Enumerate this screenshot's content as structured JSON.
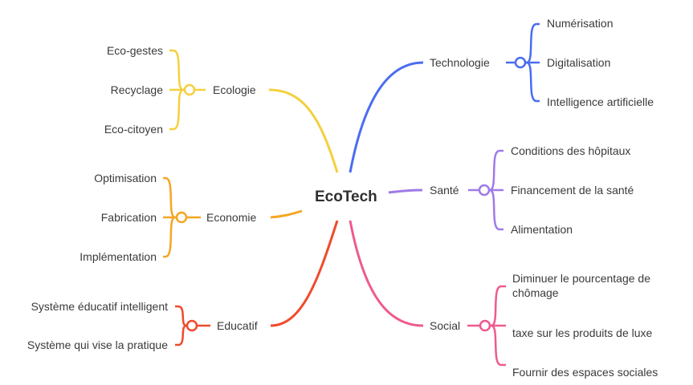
{
  "central": "EcoTech",
  "branches": {
    "technologie": {
      "label": "Technologie",
      "color": "#4a6cf0",
      "children": [
        "Numérisation",
        "Digitalisation",
        "Intelligence artificielle"
      ]
    },
    "sante": {
      "label": "Santé",
      "color": "#9f7ae6",
      "children": [
        "Conditions des hôpitaux",
        "Financement de la santé",
        "Alimentation"
      ]
    },
    "social": {
      "label": "Social",
      "color": "#ee5a8f",
      "children": [
        "Diminuer le pourcentage de chômage",
        "taxe sur les produits de luxe",
        "Fournir des espaces sociales"
      ]
    },
    "ecologie": {
      "label": "Ecologie",
      "color": "#f4d03f",
      "children": [
        "Eco-gestes",
        "Recyclage",
        "Eco-citoyen"
      ]
    },
    "economie": {
      "label": "Economie",
      "color": "#f5a623",
      "children": [
        "Optimisation",
        "Fabrication",
        "Implémentation"
      ]
    },
    "educatif": {
      "label": "Educatif",
      "color": "#ef4b2b",
      "children": [
        "Système éducatif intelligent",
        "Système qui vise la pratique"
      ]
    }
  }
}
